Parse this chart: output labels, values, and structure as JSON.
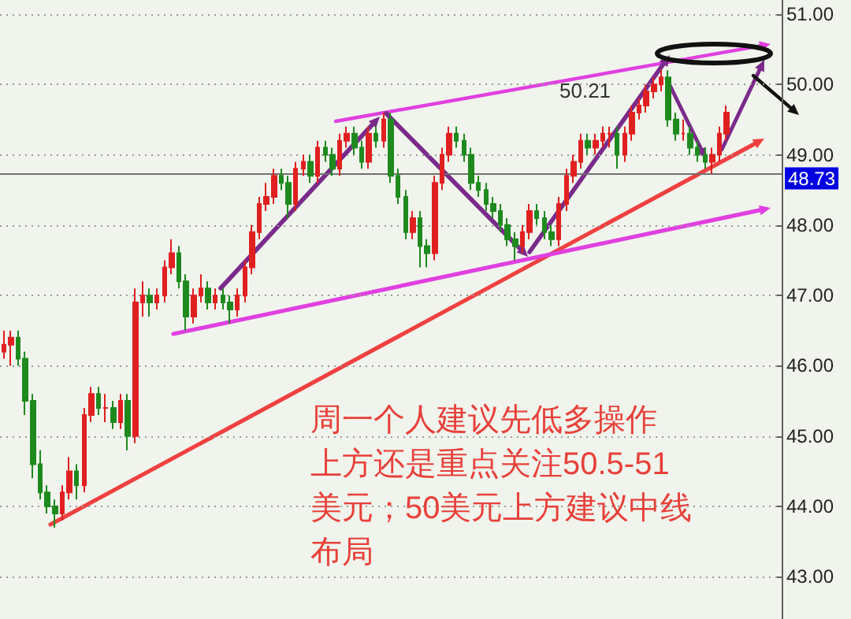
{
  "chart_data": {
    "type": "candlestick",
    "categories": [
      null,
      null,
      null,
      null,
      null,
      null,
      null,
      null,
      null,
      null,
      null,
      null,
      null,
      null,
      null,
      null,
      null,
      null,
      null,
      null,
      null,
      null,
      null,
      null,
      null,
      null,
      null,
      null,
      null,
      null,
      null,
      null,
      null,
      null,
      null,
      null,
      null,
      null,
      null,
      null,
      null,
      null,
      null,
      null,
      null,
      null,
      null,
      null,
      null,
      null,
      null,
      null,
      null,
      null,
      null,
      null,
      null,
      null,
      null,
      null,
      null,
      null,
      null,
      null,
      null,
      null,
      null,
      null,
      null,
      null,
      null,
      null,
      null,
      null,
      null,
      null,
      null,
      null,
      null,
      null,
      null,
      null,
      null,
      null,
      null,
      null,
      null,
      null,
      null,
      null,
      null,
      null,
      null,
      null,
      null,
      null,
      null,
      null,
      null,
      null,
      null,
      null,
      null,
      null,
      null,
      null,
      null
    ],
    "ohlc": [
      [
        46.2,
        46.5,
        46.1,
        46.3
      ],
      [
        46.3,
        46.5,
        46.0,
        46.4
      ],
      [
        46.4,
        46.5,
        46.0,
        46.1
      ],
      [
        46.1,
        46.2,
        45.3,
        45.5
      ],
      [
        45.5,
        45.6,
        44.4,
        44.6
      ],
      [
        44.6,
        44.8,
        44.1,
        44.2
      ],
      [
        44.2,
        44.3,
        43.9,
        44.0
      ],
      [
        44.0,
        44.1,
        43.7,
        43.9
      ],
      [
        43.9,
        44.3,
        43.8,
        44.2
      ],
      [
        44.2,
        44.7,
        44.1,
        44.5
      ],
      [
        44.5,
        44.6,
        44.1,
        44.3
      ],
      [
        44.3,
        45.4,
        44.2,
        45.3
      ],
      [
        45.3,
        45.7,
        45.2,
        45.6
      ],
      [
        45.6,
        45.7,
        45.3,
        45.4
      ],
      [
        45.4,
        45.6,
        45.2,
        45.4
      ],
      [
        45.4,
        45.5,
        45.1,
        45.2
      ],
      [
        45.2,
        45.6,
        45.1,
        45.5
      ],
      [
        45.5,
        45.6,
        44.8,
        45.0
      ],
      [
        45.0,
        47.1,
        44.9,
        46.9
      ],
      [
        46.9,
        47.2,
        46.7,
        47.0
      ],
      [
        47.0,
        47.1,
        46.7,
        46.9
      ],
      [
        46.9,
        47.1,
        46.8,
        47.0
      ],
      [
        47.0,
        47.5,
        46.9,
        47.4
      ],
      [
        47.4,
        47.8,
        47.3,
        47.6
      ],
      [
        47.6,
        47.7,
        47.1,
        47.2
      ],
      [
        47.2,
        47.3,
        46.5,
        46.7
      ],
      [
        46.7,
        47.1,
        46.6,
        47.0
      ],
      [
        47.0,
        47.3,
        46.9,
        47.1
      ],
      [
        47.1,
        47.2,
        46.8,
        46.9
      ],
      [
        46.9,
        47.1,
        46.8,
        47.0
      ],
      [
        47.0,
        47.1,
        46.8,
        46.9
      ],
      [
        46.9,
        47.0,
        46.6,
        46.8
      ],
      [
        46.8,
        47.1,
        46.7,
        47.0
      ],
      [
        47.0,
        47.5,
        46.9,
        47.4
      ],
      [
        47.4,
        48.0,
        47.3,
        47.9
      ],
      [
        47.9,
        48.4,
        47.8,
        48.3
      ],
      [
        48.3,
        48.6,
        48.2,
        48.4
      ],
      [
        48.4,
        48.8,
        48.3,
        48.7
      ],
      [
        48.7,
        48.8,
        48.5,
        48.6
      ],
      [
        48.6,
        48.7,
        48.1,
        48.3
      ],
      [
        48.3,
        48.9,
        48.2,
        48.8
      ],
      [
        48.8,
        49.0,
        48.7,
        48.9
      ],
      [
        48.9,
        49.0,
        48.6,
        48.7
      ],
      [
        48.7,
        49.2,
        48.6,
        49.1
      ],
      [
        49.1,
        49.2,
        48.9,
        49.0
      ],
      [
        49.0,
        49.1,
        48.7,
        48.8
      ],
      [
        48.8,
        49.3,
        48.7,
        49.2
      ],
      [
        49.2,
        49.4,
        49.1,
        49.3
      ],
      [
        49.3,
        49.4,
        49.0,
        49.1
      ],
      [
        49.1,
        49.2,
        48.8,
        48.9
      ],
      [
        48.9,
        49.4,
        48.8,
        49.3
      ],
      [
        49.3,
        49.4,
        49.1,
        49.2
      ],
      [
        49.2,
        49.6,
        49.1,
        49.5
      ],
      [
        49.5,
        49.6,
        48.6,
        48.7
      ],
      [
        48.7,
        48.8,
        48.3,
        48.4
      ],
      [
        48.4,
        48.5,
        47.8,
        47.9
      ],
      [
        47.9,
        48.2,
        47.8,
        48.1
      ],
      [
        48.1,
        48.2,
        47.4,
        47.7
      ],
      [
        47.7,
        47.8,
        47.4,
        47.6
      ],
      [
        47.6,
        48.7,
        47.5,
        48.6
      ],
      [
        48.6,
        49.1,
        48.5,
        49.0
      ],
      [
        49.0,
        49.4,
        48.9,
        49.3
      ],
      [
        49.3,
        49.4,
        49.1,
        49.2
      ],
      [
        49.2,
        49.3,
        48.9,
        49.0
      ],
      [
        49.0,
        49.1,
        48.5,
        48.6
      ],
      [
        48.6,
        48.7,
        48.4,
        48.5
      ],
      [
        48.5,
        48.6,
        48.2,
        48.3
      ],
      [
        48.3,
        48.4,
        48.1,
        48.2
      ],
      [
        48.2,
        48.3,
        47.9,
        48.0
      ],
      [
        48.0,
        48.1,
        47.7,
        47.8
      ],
      [
        47.8,
        47.9,
        47.5,
        47.7
      ],
      [
        47.7,
        48.0,
        47.6,
        47.9
      ],
      [
        47.9,
        48.3,
        47.8,
        48.2
      ],
      [
        48.2,
        48.3,
        48.0,
        48.1
      ],
      [
        48.1,
        48.2,
        47.8,
        47.9
      ],
      [
        47.9,
        48.0,
        47.7,
        47.8
      ],
      [
        47.8,
        48.4,
        47.7,
        48.3
      ],
      [
        48.3,
        48.8,
        48.2,
        48.7
      ],
      [
        48.7,
        49.0,
        48.6,
        48.9
      ],
      [
        48.9,
        49.3,
        48.8,
        49.2
      ],
      [
        49.2,
        49.3,
        49.0,
        49.1
      ],
      [
        49.1,
        49.3,
        49.0,
        49.2
      ],
      [
        49.2,
        49.4,
        49.1,
        49.3
      ],
      [
        49.3,
        49.4,
        49.1,
        49.3
      ],
      [
        49.3,
        49.4,
        48.8,
        49.0
      ],
      [
        49.0,
        49.4,
        48.9,
        49.3
      ],
      [
        49.3,
        49.7,
        49.2,
        49.6
      ],
      [
        49.6,
        49.8,
        49.5,
        49.7
      ],
      [
        49.7,
        50.0,
        49.6,
        49.9
      ],
      [
        49.9,
        50.1,
        49.8,
        50.0
      ],
      [
        50.0,
        50.21,
        49.9,
        50.1
      ],
      [
        50.1,
        50.2,
        49.4,
        49.5
      ],
      [
        49.5,
        49.6,
        49.2,
        49.3
      ],
      [
        49.3,
        49.5,
        49.2,
        49.3
      ],
      [
        49.3,
        49.4,
        49.0,
        49.1
      ],
      [
        49.1,
        49.2,
        48.9,
        49.0
      ],
      [
        49.0,
        49.1,
        48.8,
        48.9
      ],
      [
        48.9,
        49.1,
        48.73,
        49.0
      ],
      [
        49.0,
        49.4,
        48.9,
        49.3
      ],
      [
        49.3,
        49.7,
        49.2,
        49.6
      ],
      null,
      null,
      null,
      null,
      null,
      null,
      null
    ],
    "ylim": [
      42.4,
      51.2
    ],
    "yticks": [
      {
        "value": 43,
        "label": "43.00"
      },
      {
        "value": 44,
        "label": "44.00"
      },
      {
        "value": 45,
        "label": "45.00"
      },
      {
        "value": 46,
        "label": "46.00"
      },
      {
        "value": 47,
        "label": "47.00"
      },
      {
        "value": 48,
        "label": "48.00"
      },
      {
        "value": 49,
        "label": "49.00"
      },
      {
        "value": 50,
        "label": "50.00"
      },
      {
        "value": 51,
        "label": "51.00"
      }
    ],
    "ref_lines": [
      {
        "axis": "y",
        "value": 48.73,
        "label": "48.73",
        "color": "#707070"
      }
    ],
    "annotations": [
      "50.21",
      "周一个人建议先低多操作",
      "上方还是重点关注50.5-51",
      "美元；50美元上方建议中线",
      "布局"
    ],
    "grid": "y",
    "tick_labels": "y"
  }
}
